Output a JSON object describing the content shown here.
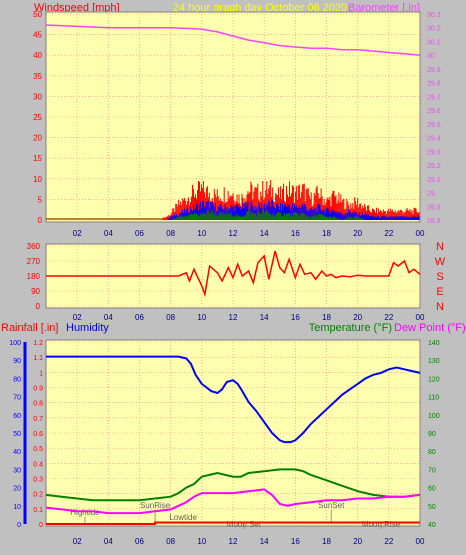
{
  "header": {
    "windspeed_label": "Windspeed [mph]",
    "center_title": "24 hour graph day   October 06 2020",
    "barometer_label": "Barometer [.in]"
  },
  "bottom_labels": {
    "rainfall": "Rainfall [.in]",
    "humidity": "Humidity",
    "temperature": "Temperature (°F)",
    "dewpoint": "Dew Point (°F)"
  },
  "compass": [
    "N",
    "W",
    "S",
    "E",
    "N"
  ],
  "events": [
    {
      "label": "Hightide",
      "hour": 2.5
    },
    {
      "label": "SunRise",
      "hour": 7.0
    },
    {
      "label": "Lowtide",
      "hour": 8.8
    },
    {
      "label": "Moon Set",
      "hour": 12.7
    },
    {
      "label": "SunSet",
      "hour": 18.3
    },
    {
      "label": "Moon Rise",
      "hour": 21.5
    }
  ],
  "colors": {
    "background": "#c0c0c0",
    "plot_bg": "#ffffb0",
    "grid": "#ff8080",
    "wind_gust": "#ff0000",
    "wind_avg": "#0000ff",
    "wind_min": "#008000",
    "barometer": "#ff40ff",
    "direction": "#ff0000",
    "humidity": "#0000ff",
    "temperature": "#008000",
    "dewpoint": "#ff00ff",
    "rain": "#ff0000",
    "title": "#ffff00"
  },
  "chart_data": [
    {
      "type": "line",
      "name": "wind-and-barometer",
      "x_ticks": [
        "02",
        "04",
        "06",
        "08",
        "10",
        "12",
        "14",
        "16",
        "18",
        "20",
        "22",
        "00"
      ],
      "xlim": [
        0,
        24
      ],
      "left_axis": {
        "label": "Windspeed [mph]",
        "ylim": [
          0,
          50
        ],
        "ticks": [
          0,
          5,
          10,
          15,
          20,
          25,
          30,
          35,
          40,
          45,
          50
        ]
      },
      "right_axis": {
        "label": "Barometer [.in]",
        "ylim": [
          28.8,
          30.3
        ],
        "ticks": [
          "28.8",
          "28.9",
          "29",
          "29.1",
          "29.2",
          "29.3",
          "29.4",
          "29.5",
          "29.6",
          "29.7",
          "29.8",
          "29.9",
          "30",
          "30.1",
          "30.2",
          "30.3"
        ]
      },
      "barometer": {
        "x": [
          0,
          2,
          4,
          6,
          8,
          10,
          11,
          12,
          13,
          14,
          15,
          16,
          17,
          18,
          19,
          20,
          21,
          22,
          23,
          24
        ],
        "y": [
          30.22,
          30.21,
          30.2,
          30.2,
          30.2,
          30.19,
          30.17,
          30.14,
          30.11,
          30.09,
          30.07,
          30.06,
          30.05,
          30.05,
          30.04,
          30.04,
          30.03,
          30.02,
          30.01,
          30.0
        ]
      },
      "wind_envelope": {
        "x": [
          0,
          7,
          7.7,
          8,
          8.5,
          9,
          9.5,
          10,
          10.5,
          11,
          11.5,
          12,
          12.5,
          13,
          13.5,
          14,
          14.5,
          15,
          15.5,
          16,
          16.5,
          17,
          17.5,
          18,
          18.5,
          19,
          19.5,
          20,
          20.5,
          21,
          22,
          23,
          24
        ],
        "gust": [
          0,
          0,
          1,
          2,
          5,
          7,
          9,
          10,
          9,
          8,
          9,
          9,
          7,
          10,
          9,
          10,
          10,
          8,
          10,
          9,
          10,
          7,
          9,
          6,
          8,
          6,
          5,
          6,
          4,
          3,
          3,
          3,
          3
        ],
        "avg": [
          0,
          0,
          0,
          1,
          2,
          3,
          4,
          5,
          5,
          4,
          4,
          4,
          4,
          5,
          4,
          5,
          5,
          4,
          5,
          4,
          5,
          3,
          4,
          3,
          3,
          2,
          3,
          2,
          2,
          1,
          1,
          1,
          1
        ],
        "min": [
          0,
          0,
          0,
          0,
          1,
          1,
          2,
          2,
          3,
          2,
          2,
          2,
          1,
          3,
          2,
          3,
          2,
          2,
          2,
          2,
          2,
          1,
          2,
          1,
          1,
          0,
          1,
          1,
          0,
          0,
          0,
          0,
          0
        ]
      }
    },
    {
      "type": "line",
      "name": "wind-direction",
      "x_ticks": [
        "02",
        "04",
        "06",
        "08",
        "10",
        "12",
        "14",
        "16",
        "18",
        "20",
        "22",
        "00"
      ],
      "xlim": [
        0,
        24
      ],
      "ylim": [
        0,
        360
      ],
      "y_ticks": [
        0,
        90,
        180,
        270,
        360
      ],
      "direction": {
        "x": [
          0,
          8.5,
          9,
          9.2,
          9.5,
          10,
          10.2,
          10.5,
          11,
          11.3,
          11.7,
          12,
          12.3,
          12.6,
          13,
          13.3,
          13.6,
          14,
          14.3,
          14.7,
          15,
          15.3,
          15.6,
          16,
          16.3,
          16.6,
          17,
          17.3,
          17.7,
          18,
          18.3,
          18.6,
          19,
          19.5,
          20,
          20.5,
          21,
          21.5,
          22,
          22.3,
          22.6,
          23,
          23.3,
          23.6,
          24
        ],
        "y": [
          180,
          180,
          200,
          150,
          220,
          120,
          70,
          240,
          200,
          150,
          230,
          170,
          250,
          180,
          210,
          140,
          260,
          300,
          160,
          330,
          230,
          200,
          280,
          170,
          250,
          190,
          200,
          160,
          210,
          180,
          190,
          170,
          180,
          175,
          185,
          180,
          180,
          180,
          180,
          260,
          240,
          270,
          200,
          220,
          190
        ]
      }
    },
    {
      "type": "line",
      "name": "rain-humidity-temperature",
      "x_ticks": [
        "02",
        "04",
        "06",
        "08",
        "10",
        "12",
        "14",
        "16",
        "18",
        "20",
        "22",
        "00"
      ],
      "xlim": [
        0,
        24
      ],
      "rain_axis": {
        "label": "Rainfall [.in]",
        "ylim": [
          0,
          1.2
        ],
        "ticks": [
          "0",
          "0.1",
          "0.2",
          "0.3",
          "0.4",
          "0.5",
          "0.6",
          "0.7",
          "0.8",
          "0.9",
          "1",
          "1.1",
          "1.2"
        ]
      },
      "humidity_axis": {
        "label": "Humidity",
        "ylim": [
          0,
          100
        ],
        "ticks": [
          0,
          10,
          20,
          30,
          40,
          50,
          60,
          70,
          80,
          90,
          100
        ]
      },
      "temp_axis": {
        "label": "Temperature (°F)",
        "ylim": [
          40,
          140
        ],
        "ticks": [
          40,
          50,
          60,
          70,
          80,
          90,
          100,
          110,
          120,
          130,
          140
        ]
      },
      "humidity": {
        "x": [
          0,
          1,
          2,
          3,
          4,
          5,
          6,
          7,
          7.5,
          8,
          8.5,
          9,
          9.3,
          9.6,
          10,
          10.3,
          10.6,
          11,
          11.3,
          11.6,
          12,
          12.3,
          12.6,
          13,
          13.5,
          14,
          14.5,
          15,
          15.3,
          15.7,
          16,
          16.5,
          17,
          17.5,
          18,
          18.5,
          19,
          19.5,
          20,
          20.5,
          21,
          21.5,
          22,
          22.5,
          23,
          23.5,
          24
        ],
        "y": [
          92,
          92,
          92,
          92,
          92,
          92,
          92,
          92,
          92,
          92,
          92,
          91,
          88,
          82,
          77,
          75,
          73,
          72,
          74,
          78,
          79,
          77,
          73,
          67,
          62,
          56,
          50,
          46,
          45,
          45,
          46,
          50,
          55,
          59,
          63,
          67,
          71,
          74,
          77,
          80,
          82,
          83,
          85,
          86,
          85,
          84,
          83
        ]
      },
      "temperature": {
        "x": [
          0,
          1,
          2,
          3,
          4,
          5,
          6,
          7,
          8,
          8.5,
          9,
          9.5,
          10,
          10.5,
          11,
          11.5,
          12,
          12.5,
          13,
          14,
          15,
          16,
          16.5,
          17,
          18,
          19,
          20,
          21,
          22,
          23,
          24
        ],
        "y": [
          56,
          55,
          54,
          53,
          53,
          53,
          53,
          54,
          55,
          57,
          60,
          62,
          66,
          67,
          68,
          67,
          66,
          66,
          68,
          69,
          70,
          70,
          69,
          67,
          64,
          61,
          58,
          56,
          55,
          55,
          56
        ]
      },
      "dewpoint": {
        "x": [
          0,
          1,
          2,
          3,
          4,
          5,
          6,
          7,
          8,
          8.5,
          9,
          9.5,
          10,
          11,
          12,
          13,
          14,
          14.5,
          15,
          15.5,
          16,
          17,
          18,
          19,
          20,
          21,
          22,
          23,
          24
        ],
        "y": [
          49,
          48,
          47,
          47,
          46,
          46,
          46,
          47,
          48,
          50,
          52,
          55,
          57,
          57,
          57,
          58,
          59,
          56,
          51,
          50,
          51,
          52,
          53,
          53,
          54,
          54,
          55,
          55,
          56
        ]
      },
      "rain": {
        "x": [
          0,
          7.0,
          7.0,
          24
        ],
        "y": [
          0.0,
          0.0,
          0.01,
          0.01
        ]
      }
    }
  ]
}
